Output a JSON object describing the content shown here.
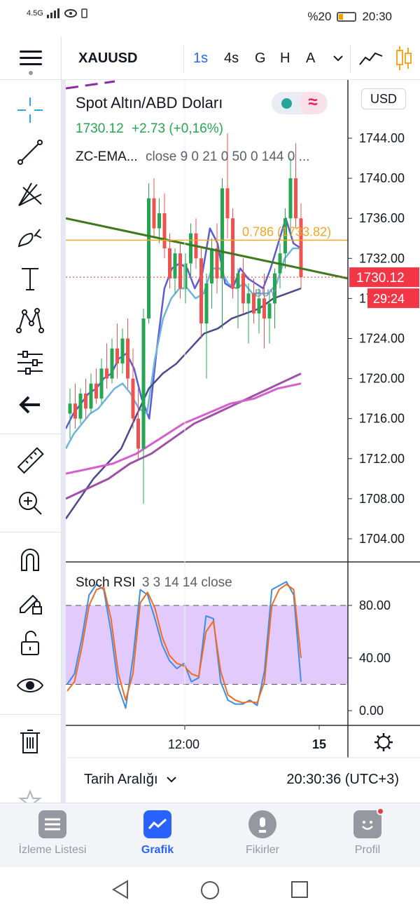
{
  "status_bar": {
    "network": "4.5G",
    "battery": "%20",
    "time": "20:30"
  },
  "toolbar": {
    "symbol": "XAUUSD",
    "timeframes": [
      "1s",
      "4s",
      "G",
      "H",
      "A"
    ],
    "active_timeframe": "1s"
  },
  "legend": {
    "title": "Spot Altın/ABD Doları",
    "price": "1730.12",
    "change": "+2.73 (+0,16%)",
    "indicator_name": "ZC-EMA...",
    "indicator_params": "close 9 0 21 0 50 0 144 0 ..."
  },
  "price_axis": {
    "currency_button": "USD",
    "ticks": [
      "1744.00",
      "1740.00",
      "1736.00",
      "1732.00",
      "1728.00",
      "1724.00",
      "1720.00",
      "1716.00",
      "1712.00",
      "1708.00",
      "1704.00"
    ],
    "last_price_label": "1730.12",
    "countdown_label": "29:24"
  },
  "annotations": {
    "fib_label": "0.786 (1733.82)",
    "buy_label": "BUY"
  },
  "stoch": {
    "name": "Stoch RSI",
    "params": "3 3 14 14 close",
    "ticks": [
      "80.00",
      "40.00",
      "0.00"
    ]
  },
  "time_axis": {
    "ticks": [
      "12:00",
      "15"
    ]
  },
  "bottom_bar": {
    "range_button": "Tarih Aralığı",
    "clock": "20:30:36 (UTC+3)"
  },
  "nav": {
    "items": [
      {
        "label": "İzleme Listesi",
        "icon": "watchlist-icon"
      },
      {
        "label": "Grafik",
        "icon": "chart-icon"
      },
      {
        "label": "Fikirler",
        "icon": "ideas-icon"
      },
      {
        "label": "Profil",
        "icon": "profile-icon"
      }
    ],
    "active": "Grafik"
  },
  "colors": {
    "up": "#26a650",
    "down": "#ef5350",
    "ema9": "#5b5bd6",
    "ema21": "#6cb4dc",
    "ema50": "#4a4a8c",
    "ema144": "#a050a8",
    "ema_pink": "#d65fd0",
    "trendline": "#3d7a1e",
    "fib": "#f5a623",
    "accent": "#2962ff",
    "stoch_k": "#3b8ee8",
    "stoch_d": "#f26b1d",
    "stoch_band": "#e2cafc"
  },
  "chart_data": [
    {
      "type": "candlestick",
      "title": "Spot Altın/ABD Doları",
      "timeframe": "1s",
      "ylim": [
        1702,
        1748
      ],
      "x_ticks": [
        "12:00",
        "15"
      ],
      "candles_ohlc": [
        [
          1716.5,
          1719.0,
          1714.0,
          1717.5
        ],
        [
          1717.5,
          1719.5,
          1715.0,
          1716.0
        ],
        [
          1716.0,
          1719.0,
          1715.5,
          1718.5
        ],
        [
          1718.5,
          1720.0,
          1716.0,
          1717.0
        ],
        [
          1717.0,
          1720.5,
          1716.5,
          1719.5
        ],
        [
          1719.5,
          1721.0,
          1717.5,
          1718.0
        ],
        [
          1718.0,
          1722.0,
          1717.5,
          1721.0
        ],
        [
          1721.0,
          1723.5,
          1719.0,
          1720.0
        ],
        [
          1720.0,
          1724.0,
          1719.5,
          1723.0
        ],
        [
          1723.0,
          1725.5,
          1720.0,
          1721.5
        ],
        [
          1721.5,
          1725.0,
          1720.5,
          1724.0
        ],
        [
          1724.0,
          1726.0,
          1719.0,
          1720.0
        ],
        [
          1720.0,
          1723.0,
          1715.0,
          1716.0
        ],
        [
          1716.0,
          1719.0,
          1712.0,
          1713.0
        ],
        [
          1713.0,
          1727.0,
          1707.5,
          1726.0
        ],
        [
          1726.0,
          1739.5,
          1725.5,
          1738.0
        ],
        [
          1738.0,
          1740.0,
          1734.0,
          1735.0
        ],
        [
          1735.0,
          1738.0,
          1733.5,
          1736.5
        ],
        [
          1736.5,
          1738.5,
          1732.0,
          1733.0
        ],
        [
          1733.0,
          1734.5,
          1729.0,
          1730.0
        ],
        [
          1730.0,
          1733.0,
          1728.5,
          1732.5
        ],
        [
          1732.5,
          1733.5,
          1728.0,
          1729.0
        ],
        [
          1729.0,
          1732.5,
          1727.5,
          1731.5
        ],
        [
          1731.5,
          1735.5,
          1730.0,
          1734.5
        ],
        [
          1734.5,
          1736.0,
          1731.0,
          1732.0
        ],
        [
          1732.0,
          1733.0,
          1724.0,
          1725.5
        ],
        [
          1725.5,
          1730.5,
          1720.0,
          1729.5
        ],
        [
          1729.5,
          1734.0,
          1727.0,
          1733.0
        ],
        [
          1733.0,
          1735.5,
          1728.5,
          1730.0
        ],
        [
          1730.0,
          1740.0,
          1725.0,
          1739.0
        ],
        [
          1739.0,
          1744.5,
          1734.0,
          1736.0
        ],
        [
          1736.0,
          1737.0,
          1728.0,
          1729.0
        ],
        [
          1729.0,
          1731.0,
          1725.0,
          1730.5
        ],
        [
          1730.5,
          1732.0,
          1726.5,
          1727.5
        ],
        [
          1727.5,
          1729.5,
          1723.5,
          1728.5
        ],
        [
          1728.5,
          1730.0,
          1725.5,
          1726.5
        ],
        [
          1726.5,
          1729.0,
          1724.5,
          1728.0
        ],
        [
          1728.0,
          1730.5,
          1723.0,
          1726.0
        ],
        [
          1726.0,
          1728.5,
          1723.5,
          1727.5
        ],
        [
          1727.5,
          1731.0,
          1725.0,
          1730.5
        ],
        [
          1730.5,
          1733.5,
          1729.0,
          1732.5
        ],
        [
          1732.5,
          1737.0,
          1731.0,
          1736.0
        ],
        [
          1736.0,
          1742.0,
          1734.5,
          1740.0
        ],
        [
          1740.0,
          1743.5,
          1735.0,
          1736.0
        ],
        [
          1736.0,
          1737.5,
          1729.0,
          1730.12
        ]
      ],
      "series": [
        {
          "name": "EMA 9",
          "values": [
            1715.0,
            1716.5,
            1717.5,
            1718.5,
            1719.0,
            1720.0,
            1720.5,
            1722.0,
            1722.5,
            1721.0,
            1718.0,
            1716.0,
            1723.0,
            1729.0,
            1731.0,
            1731.5,
            1731.0,
            1729.0,
            1730.5,
            1735.0,
            1733.5,
            1729.5,
            1729.0,
            1731.0,
            1730.0,
            1729.5,
            1729.0,
            1731.0,
            1733.5,
            1736.0,
            1733.5,
            1733.0
          ]
        },
        {
          "name": "EMA 21",
          "values": [
            1713.0,
            1714.5,
            1715.5,
            1716.5,
            1717.0,
            1718.0,
            1719.0,
            1719.5,
            1718.5,
            1717.0,
            1716.5,
            1722.0,
            1726.0,
            1728.0,
            1729.0,
            1729.0,
            1728.0,
            1728.5,
            1731.0,
            1731.0,
            1729.5,
            1729.0,
            1729.5,
            1728.5,
            1728.5,
            1728.5,
            1729.5,
            1732.0,
            1733.0,
            1733.0
          ]
        },
        {
          "name": "EMA 50",
          "values": [
            1706.0,
            1708.0,
            1710.0,
            1711.5,
            1713.0,
            1716.0,
            1719.0,
            1720.5,
            1721.5,
            1723.0,
            1724.5,
            1725.0,
            1726.0,
            1726.5,
            1727.0,
            1728.0,
            1728.5,
            1729.0
          ]
        },
        {
          "name": "EMA 144",
          "values": [
            1708.0,
            1709.0,
            1710.0,
            1711.5,
            1712.5,
            1714.0,
            1715.5,
            1716.5,
            1717.5,
            1718.5,
            1719.5,
            1720.5
          ]
        },
        {
          "name": "EMA 144 (2)",
          "values": [
            1710.5,
            1711.0,
            1711.5,
            1712.5,
            1714.0,
            1715.5,
            1716.5,
            1717.5,
            1718.0,
            1719.0,
            1719.5
          ]
        }
      ],
      "trendline": [
        1736.0,
        1730.0
      ],
      "fib_level": {
        "label": "0.786 (1733.82)",
        "value": 1733.82
      },
      "last_price": 1730.12
    },
    {
      "type": "line",
      "title": "Stoch RSI 3 3 14 14 close",
      "ylim": [
        -5,
        105
      ],
      "band": [
        20,
        80
      ],
      "series": [
        {
          "name": "K",
          "values": [
            20,
            28,
            55,
            88,
            96,
            92,
            60,
            18,
            2,
            40,
            92,
            88,
            70,
            50,
            38,
            32,
            36,
            22,
            25,
            72,
            70,
            22,
            8,
            5,
            5,
            8,
            4,
            30,
            92,
            95,
            98,
            88,
            22
          ]
        },
        {
          "name": "D",
          "values": [
            15,
            22,
            48,
            80,
            92,
            94,
            70,
            28,
            8,
            28,
            82,
            90,
            78,
            56,
            42,
            36,
            34,
            28,
            26,
            60,
            68,
            30,
            12,
            8,
            6,
            7,
            6,
            22,
            80,
            92,
            96,
            92,
            40
          ]
        }
      ]
    }
  ]
}
